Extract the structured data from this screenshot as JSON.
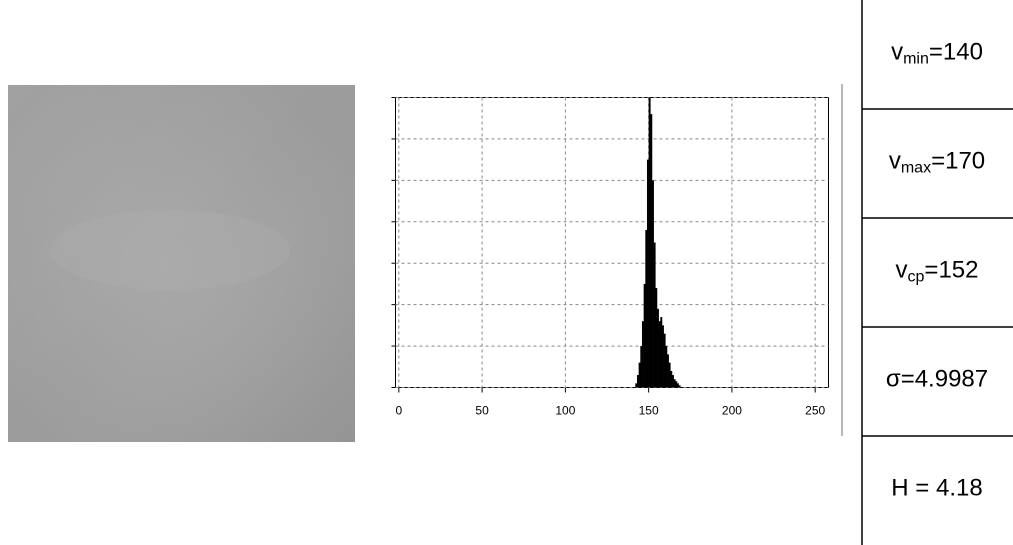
{
  "chart_data": {
    "type": "histogram",
    "bins": [
      142,
      143,
      144,
      145,
      146,
      147,
      148,
      149,
      150,
      151,
      152,
      153,
      154,
      155,
      156,
      157,
      158,
      159,
      160,
      161,
      162,
      163,
      164,
      165,
      166,
      167,
      168,
      169
    ],
    "values": [
      0.1,
      0.3,
      0.6,
      1.0,
      1.6,
      2.5,
      3.8,
      5.5,
      7.0,
      6.6,
      5.0,
      3.5,
      2.4,
      1.9,
      1.6,
      1.7,
      1.5,
      1.3,
      1.0,
      0.8,
      0.6,
      0.4,
      0.3,
      0.2,
      0.15,
      0.1,
      0.05
    ],
    "color": "#000000",
    "xlim": [
      -2,
      258
    ],
    "xticks": [
      0,
      50,
      100,
      150,
      200,
      250
    ],
    "ylim": [
      0,
      7
    ],
    "yticks": [
      0,
      1,
      2,
      3,
      4,
      5,
      6,
      7
    ],
    "y_tick_labels": false,
    "grid": true
  },
  "stats": [
    {
      "symbol": "v",
      "sub": "min",
      "text": "=140"
    },
    {
      "symbol": "v",
      "sub": "max",
      "text": "=170"
    },
    {
      "symbol": "v",
      "sub": "cp",
      "text": "=152"
    },
    {
      "text": "σ=4.9987"
    },
    {
      "text": "H = 4.18"
    }
  ]
}
